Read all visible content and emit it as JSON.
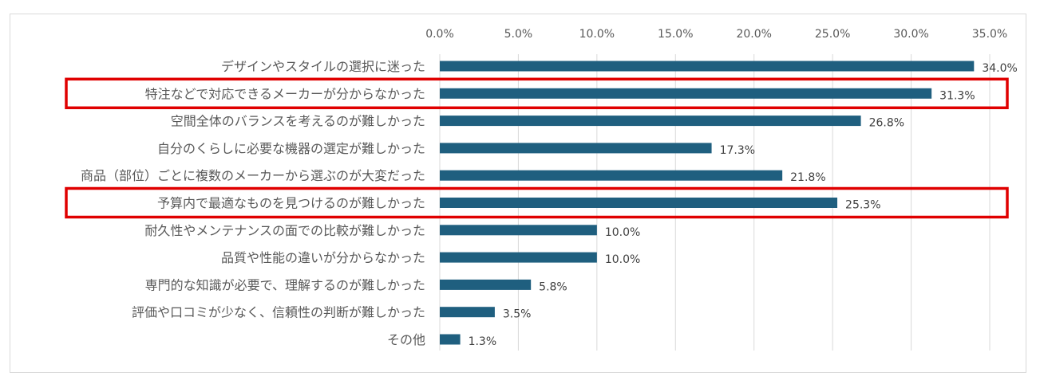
{
  "chart_data": {
    "type": "bar",
    "orientation": "horizontal",
    "xlim": [
      0,
      35
    ],
    "x_ticks": [
      "0.0%",
      "5.0%",
      "10.0%",
      "15.0%",
      "20.0%",
      "25.0%",
      "30.0%",
      "35.0%"
    ],
    "grid": true,
    "bar_color": "#1f5f7f",
    "highlight_color": "#e00000",
    "categories": [
      "デザインやスタイルの選択に迷った",
      "特注などで対応できるメーカーが分からなかった",
      "空間全体のバランスを考えるのが難しかった",
      "自分のくらしに必要な機器の選定が難しかった",
      "商品（部位）ごとに複数のメーカーから選ぶのが大変だった",
      "予算内で最適なものを見つけるのが難しかった",
      "耐久性やメンテナンスの面での比較が難しかった",
      "品質や性能の違いが分からなかった",
      "専門的な知識が必要で、理解するのが難しかった",
      "評価や口コミが少なく、信頼性の判断が難しかった",
      "その他"
    ],
    "values": [
      34.0,
      31.3,
      26.8,
      17.3,
      21.8,
      25.3,
      10.0,
      10.0,
      5.8,
      3.5,
      1.3
    ],
    "value_labels": [
      "34.0%",
      "31.3%",
      "26.8%",
      "17.3%",
      "21.8%",
      "25.3%",
      "10.0%",
      "10.0%",
      "5.8%",
      "3.5%",
      "1.3%"
    ],
    "highlighted_indices": [
      1,
      5
    ]
  }
}
